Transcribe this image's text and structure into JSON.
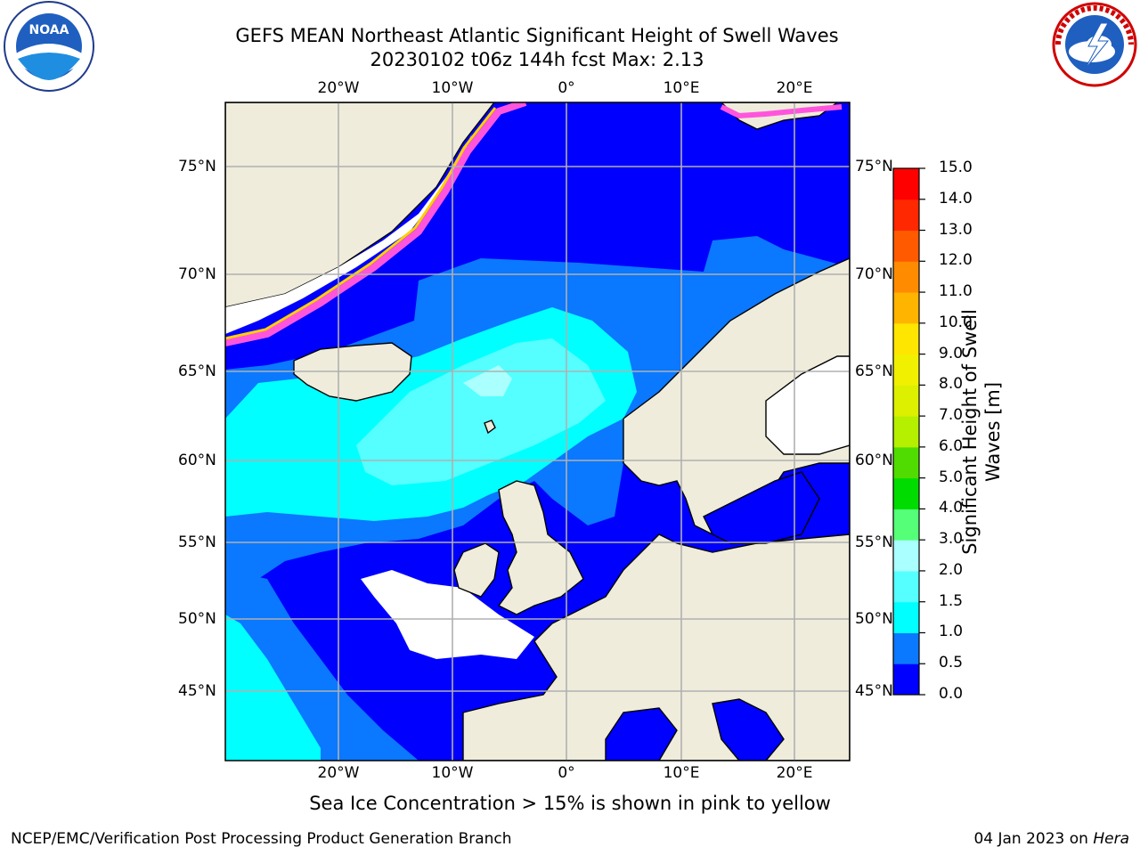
{
  "title_line1": "GEFS MEAN Northeast Atlantic Significant Height of Swell Waves",
  "title_line2": "20230102 t06z 144h fcst   Max: 2.13",
  "logos": {
    "left": "NOAA",
    "left_ring": "NATIONAL OCEANIC AND ATMOSPHERIC ADMINISTRATION · U.S. DEPARTMENT OF COMMERCE",
    "right_ring": "NATIONAL WEATHER SERVICE"
  },
  "lon_labels": [
    "20°W",
    "10°W",
    "0°",
    "10°E",
    "20°E"
  ],
  "lat_labels": [
    "75°N",
    "70°N",
    "65°N",
    "60°N",
    "55°N",
    "50°N",
    "45°N"
  ],
  "colorbar": {
    "title_line1": "Significant Height of Swell",
    "title_line2": "Waves [m]",
    "tick_labels": [
      "15.0",
      "14.0",
      "13.0",
      "12.0",
      "11.0",
      "10.0",
      "9.0",
      "8.0",
      "7.0",
      "6.0",
      "5.0",
      "4.0",
      "3.0",
      "2.0",
      "1.5",
      "1.0",
      "0.5",
      "0.0"
    ],
    "colors_bottom_to_top": [
      "#0000ff",
      "#0a78ff",
      "#00ffff",
      "#55ffff",
      "#aaffff",
      "#55ff78",
      "#00dc00",
      "#50dc00",
      "#b4f000",
      "#dcf000",
      "#f0f000",
      "#ffe600",
      "#ffb400",
      "#ff8c00",
      "#ff5a00",
      "#ff2800",
      "#ff0000"
    ]
  },
  "map_colors": {
    "land": "#efecdc",
    "coast": "#000000",
    "grid": "#b0b0b0",
    "ice": "#ff55dd"
  },
  "ice_note": "Sea Ice Concentration > 15% is shown in pink to yellow",
  "footer": {
    "left": "NCEP/EMC/Verification Post Processing Product Generation Branch",
    "date": "04 Jan 2023 on ",
    "host": "Hera"
  }
}
